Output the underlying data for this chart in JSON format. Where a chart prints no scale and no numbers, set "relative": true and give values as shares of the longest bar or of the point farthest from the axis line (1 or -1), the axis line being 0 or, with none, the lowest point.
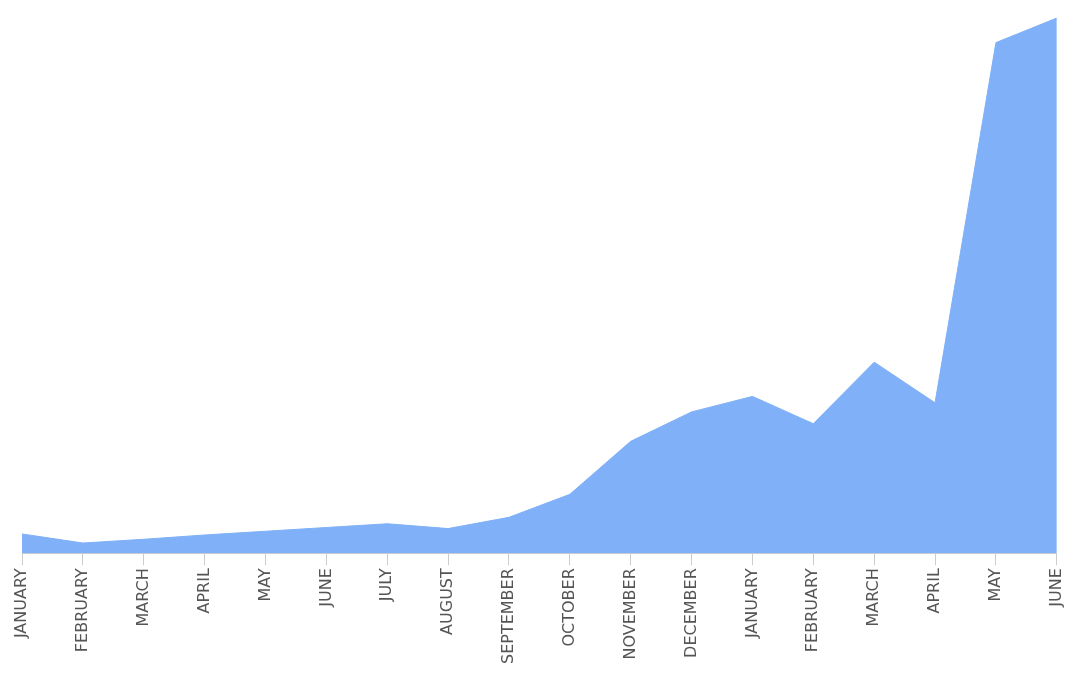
{
  "chart_data": {
    "type": "area",
    "relative": true,
    "categories": [
      "JANUARY",
      "FEBRUARY",
      "MARCH",
      "APRIL",
      "MAY",
      "JUNE",
      "JULY",
      "AUGUST",
      "SEPTEMBER",
      "OCTOBER",
      "NOVEMBER",
      "DECEMBER",
      "JANUARY",
      "FEBRUARY",
      "MARCH",
      "APRIL",
      "MAY",
      "JUNE"
    ],
    "values": [
      0.036,
      0.019,
      0.026,
      0.034,
      0.041,
      0.048,
      0.055,
      0.046,
      0.067,
      0.11,
      0.209,
      0.264,
      0.293,
      0.242,
      0.357,
      0.281,
      0.954,
      1
    ],
    "color": "#7fb0f8",
    "legend": false,
    "grid": false
  }
}
